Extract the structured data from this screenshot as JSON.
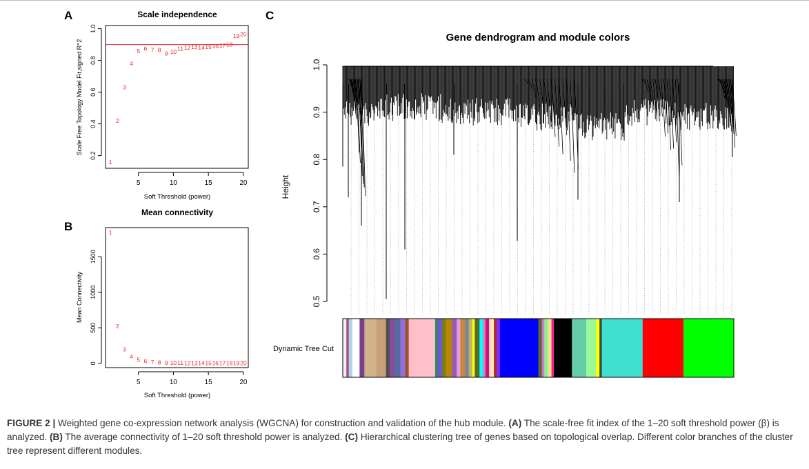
{
  "panels": {
    "a": {
      "letter": "A"
    },
    "b": {
      "letter": "B"
    },
    "c": {
      "letter": "C"
    }
  },
  "chart_data": [
    {
      "type": "scatter",
      "title": "Scale independence",
      "xlabel": "Soft Threshold (power)",
      "ylabel": "Scale Free Topology Model Fit,signed R^2",
      "xlim": [
        0.3,
        20.7
      ],
      "ylim": [
        0.12,
        1.02
      ],
      "x_ticks": [
        5,
        10,
        15,
        20
      ],
      "y_ticks": [
        0.2,
        0.4,
        0.6,
        0.8,
        1.0
      ],
      "y_tick_labels": [
        "0.2",
        "0.4",
        "0.6",
        "0.8",
        "1.0"
      ],
      "points_color": "#e8262c",
      "x": [
        1,
        2,
        3,
        4,
        5,
        6,
        7,
        8,
        9,
        10,
        11,
        12,
        13,
        14,
        15,
        16,
        17,
        18,
        19,
        20
      ],
      "values": [
        0.16,
        0.42,
        0.63,
        0.78,
        0.86,
        0.875,
        0.865,
        0.865,
        0.845,
        0.855,
        0.875,
        0.88,
        0.885,
        0.88,
        0.885,
        0.89,
        0.895,
        0.9,
        0.955,
        0.965
      ],
      "point_labels": [
        "1",
        "2",
        "3",
        "4",
        "5",
        "6",
        "7",
        "8",
        "9",
        "10",
        "11",
        "12",
        "13",
        "14",
        "15",
        "16",
        "17",
        "18",
        "19",
        "20"
      ],
      "hline": 0.9,
      "hline_color": "#e8262c"
    },
    {
      "type": "scatter",
      "title": "Mean connectivity",
      "xlabel": "Soft Threshold (power)",
      "ylabel": "Mean Connectivity",
      "xlim": [
        0.3,
        20.7
      ],
      "ylim": [
        -60,
        1910
      ],
      "x_ticks": [
        5,
        10,
        15,
        20
      ],
      "y_ticks": [
        0,
        500,
        1000,
        1500
      ],
      "points_color": "#e8262c",
      "x": [
        1,
        2,
        3,
        4,
        5,
        6,
        7,
        8,
        9,
        10,
        11,
        12,
        13,
        14,
        15,
        16,
        17,
        18,
        19,
        20
      ],
      "values": [
        1840,
        520,
        195,
        95,
        50,
        30,
        20,
        14,
        10,
        8,
        6,
        5,
        4,
        3,
        2.5,
        2,
        1.5,
        1.2,
        1,
        0.8
      ],
      "point_labels": [
        "1",
        "2",
        "3",
        "4",
        "5",
        "6",
        "7",
        "8",
        "9",
        "10",
        "11",
        "12",
        "13",
        "14",
        "15",
        "16",
        "17",
        "18",
        "19",
        "20"
      ]
    },
    {
      "type": "dendrogram",
      "title": "Gene dendrogram and module colors",
      "ylabel": "Height",
      "ylim": [
        0.5,
        1.0
      ],
      "y_ticks": [
        0.5,
        0.6,
        0.7,
        0.8,
        0.9,
        1.0
      ],
      "y_tick_labels": [
        "0.5",
        "0.6",
        "0.7",
        "0.8",
        "0.9",
        "1.0"
      ],
      "color_bar_label": "Dynamic Tree Cut",
      "module_colors": [
        "#f2f2f2",
        "#b04a8a",
        "#add8e6",
        "#ffffff",
        "#7a3f8e",
        "#d2b48c",
        "#c8a07a",
        "#505050",
        "#8b4a9c",
        "#556b9f",
        "#9370db",
        "#a0522d",
        "#ffc0cb",
        "#ffc0cb",
        "#2e8b57",
        "#6a5acd",
        "#808000",
        "#b8860b",
        "#9b59b6",
        "#dda0dd",
        "#cd853f",
        "#778899",
        "#bdb76b",
        "#ffff00",
        "#556b2f",
        "#00ffff",
        "#ff69b4",
        "#c71585",
        "#ffe4b5",
        "#a52a2a",
        "#8a2be2",
        "#0000ff",
        "#0000ff",
        "#556b2f",
        "#da70d6",
        "#90ee90",
        "#f0e68c",
        "#ff1493",
        "#000000",
        "#66cdaa",
        "#98fb98",
        "#ffff00",
        "#2f4f4f",
        "#40e0d0",
        "#40e0d0",
        "#ff0000",
        "#00ff00"
      ]
    }
  ],
  "caption": {
    "figure_label": "FIGURE 2 |",
    "intro": " Weighted gene co-expression network analysis (WGCNA) for construction and validation of the hub module. ",
    "a_tag": "(A)",
    "a_text": " The scale-free fit index of the 1–20 soft threshold power (β) is analyzed. ",
    "b_tag": "(B)",
    "b_text": " The average connectivity of 1–20 soft threshold power is analyzed. ",
    "c_tag": "(C)",
    "c_text": " Hierarchical clustering tree of genes based on topological overlap. Different color branches of the cluster tree represent different modules."
  }
}
